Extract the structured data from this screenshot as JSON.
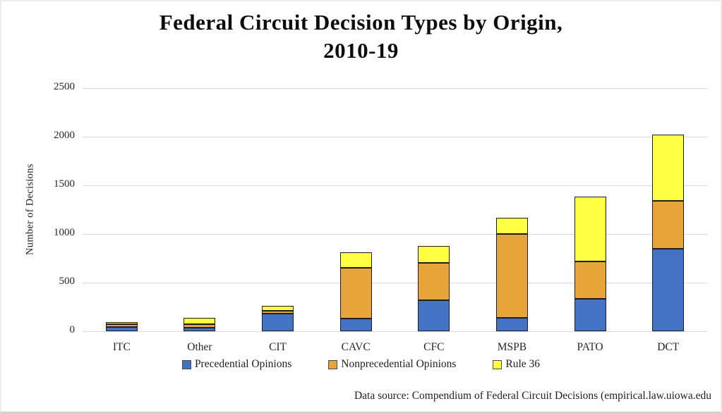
{
  "title": {
    "line1": "Federal Circuit Decision Types by Origin,",
    "line2": "2010-19"
  },
  "axis": {
    "ylabel": "Number of Decisions",
    "ymin": 0,
    "ymax": 2500,
    "yticks": [
      0,
      500,
      1000,
      1500,
      2000,
      2500
    ]
  },
  "legend": {
    "items": [
      "Precedential Opinions",
      "Nonprecedential Opinions",
      "Rule 36"
    ]
  },
  "footer": {
    "text": "Data source: Compendium of Federal Circuit Decisions (empirical.law.uiowa.edu"
  },
  "colors": {
    "precedential_blue": "#4472C4",
    "nonprecedential_orange": "#E6A43A",
    "rule36_yellow": "#FFFF42",
    "bar_border": "#1e1e1e",
    "gridline": "#d9d9d9"
  },
  "chart_data": {
    "type": "bar",
    "stacked": true,
    "title": "Federal Circuit Decision Types by Origin, 2010-19",
    "xlabel": "",
    "ylabel": "Number of Decisions",
    "ylim": [
      0,
      2500
    ],
    "grid": "horizontal",
    "legend_position": "bottom",
    "categories": [
      "ITC",
      "Other",
      "CIT",
      "CAVC",
      "CFC",
      "MSPB",
      "PATO",
      "DCT"
    ],
    "series": [
      {
        "name": "Precedential Opinions",
        "color": "#4472C4",
        "values": [
          45,
          35,
          180,
          130,
          320,
          135,
          330,
          850
        ]
      },
      {
        "name": "Nonprecedential Opinions",
        "color": "#E6A43A",
        "values": [
          25,
          40,
          30,
          520,
          380,
          865,
          390,
          490
        ]
      },
      {
        "name": "Rule 36",
        "color": "#FFFF42",
        "values": [
          25,
          60,
          50,
          160,
          175,
          170,
          665,
          680
        ]
      }
    ],
    "totals": [
      95,
      135,
      260,
      810,
      875,
      1170,
      1385,
      2020
    ]
  }
}
